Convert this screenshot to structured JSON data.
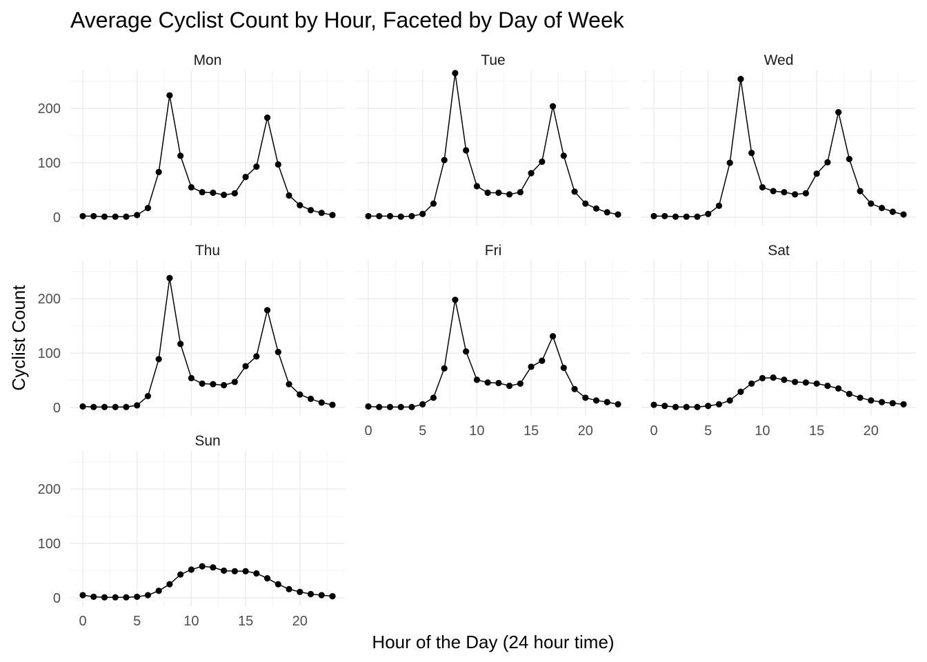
{
  "chart_data": {
    "type": "line",
    "title": "Average Cyclist Count by Hour, Faceted by Day of Week",
    "xlabel": "Hour of the Day (24 hour time)",
    "ylabel": "Cyclist Count",
    "xlim": [
      0,
      23
    ],
    "ylim": [
      0,
      270
    ],
    "x_ticks": [
      0,
      5,
      10,
      15,
      20
    ],
    "y_ticks": [
      0,
      100,
      200
    ],
    "grid": true,
    "legend": "none",
    "line_color": "#000000",
    "panel_grid_color": "#ebebeb",
    "x": [
      0,
      1,
      2,
      3,
      4,
      5,
      6,
      7,
      8,
      9,
      10,
      11,
      12,
      13,
      14,
      15,
      16,
      17,
      18,
      19,
      20,
      21,
      22,
      23
    ],
    "facets": [
      {
        "name": "Mon",
        "values": [
          2,
          2,
          1,
          1,
          1,
          4,
          17,
          83,
          224,
          113,
          55,
          46,
          45,
          41,
          44,
          74,
          93,
          183,
          97,
          40,
          22,
          13,
          8,
          4
        ]
      },
      {
        "name": "Tue",
        "values": [
          2,
          2,
          2,
          1,
          2,
          6,
          25,
          105,
          265,
          123,
          57,
          45,
          45,
          42,
          46,
          81,
          102,
          204,
          113,
          47,
          25,
          16,
          9,
          5
        ]
      },
      {
        "name": "Wed",
        "values": [
          2,
          2,
          1,
          1,
          1,
          6,
          21,
          100,
          254,
          118,
          55,
          48,
          46,
          42,
          44,
          80,
          101,
          193,
          107,
          48,
          25,
          17,
          10,
          5
        ]
      },
      {
        "name": "Thu",
        "values": [
          2,
          1,
          1,
          1,
          1,
          4,
          21,
          89,
          238,
          117,
          54,
          44,
          43,
          41,
          47,
          76,
          94,
          179,
          102,
          43,
          24,
          16,
          9,
          5
        ]
      },
      {
        "name": "Fri",
        "values": [
          2,
          1,
          1,
          1,
          1,
          6,
          18,
          72,
          198,
          103,
          51,
          46,
          45,
          40,
          44,
          75,
          86,
          131,
          73,
          34,
          18,
          13,
          10,
          6
        ]
      },
      {
        "name": "Sat",
        "values": [
          5,
          3,
          1,
          1,
          1,
          3,
          6,
          13,
          29,
          44,
          54,
          55,
          51,
          47,
          46,
          44,
          40,
          35,
          25,
          18,
          13,
          10,
          8,
          6
        ]
      },
      {
        "name": "Sun",
        "values": [
          5,
          2,
          1,
          1,
          1,
          2,
          5,
          13,
          25,
          43,
          52,
          58,
          56,
          50,
          49,
          49,
          45,
          36,
          25,
          16,
          11,
          7,
          5,
          3
        ]
      }
    ]
  }
}
